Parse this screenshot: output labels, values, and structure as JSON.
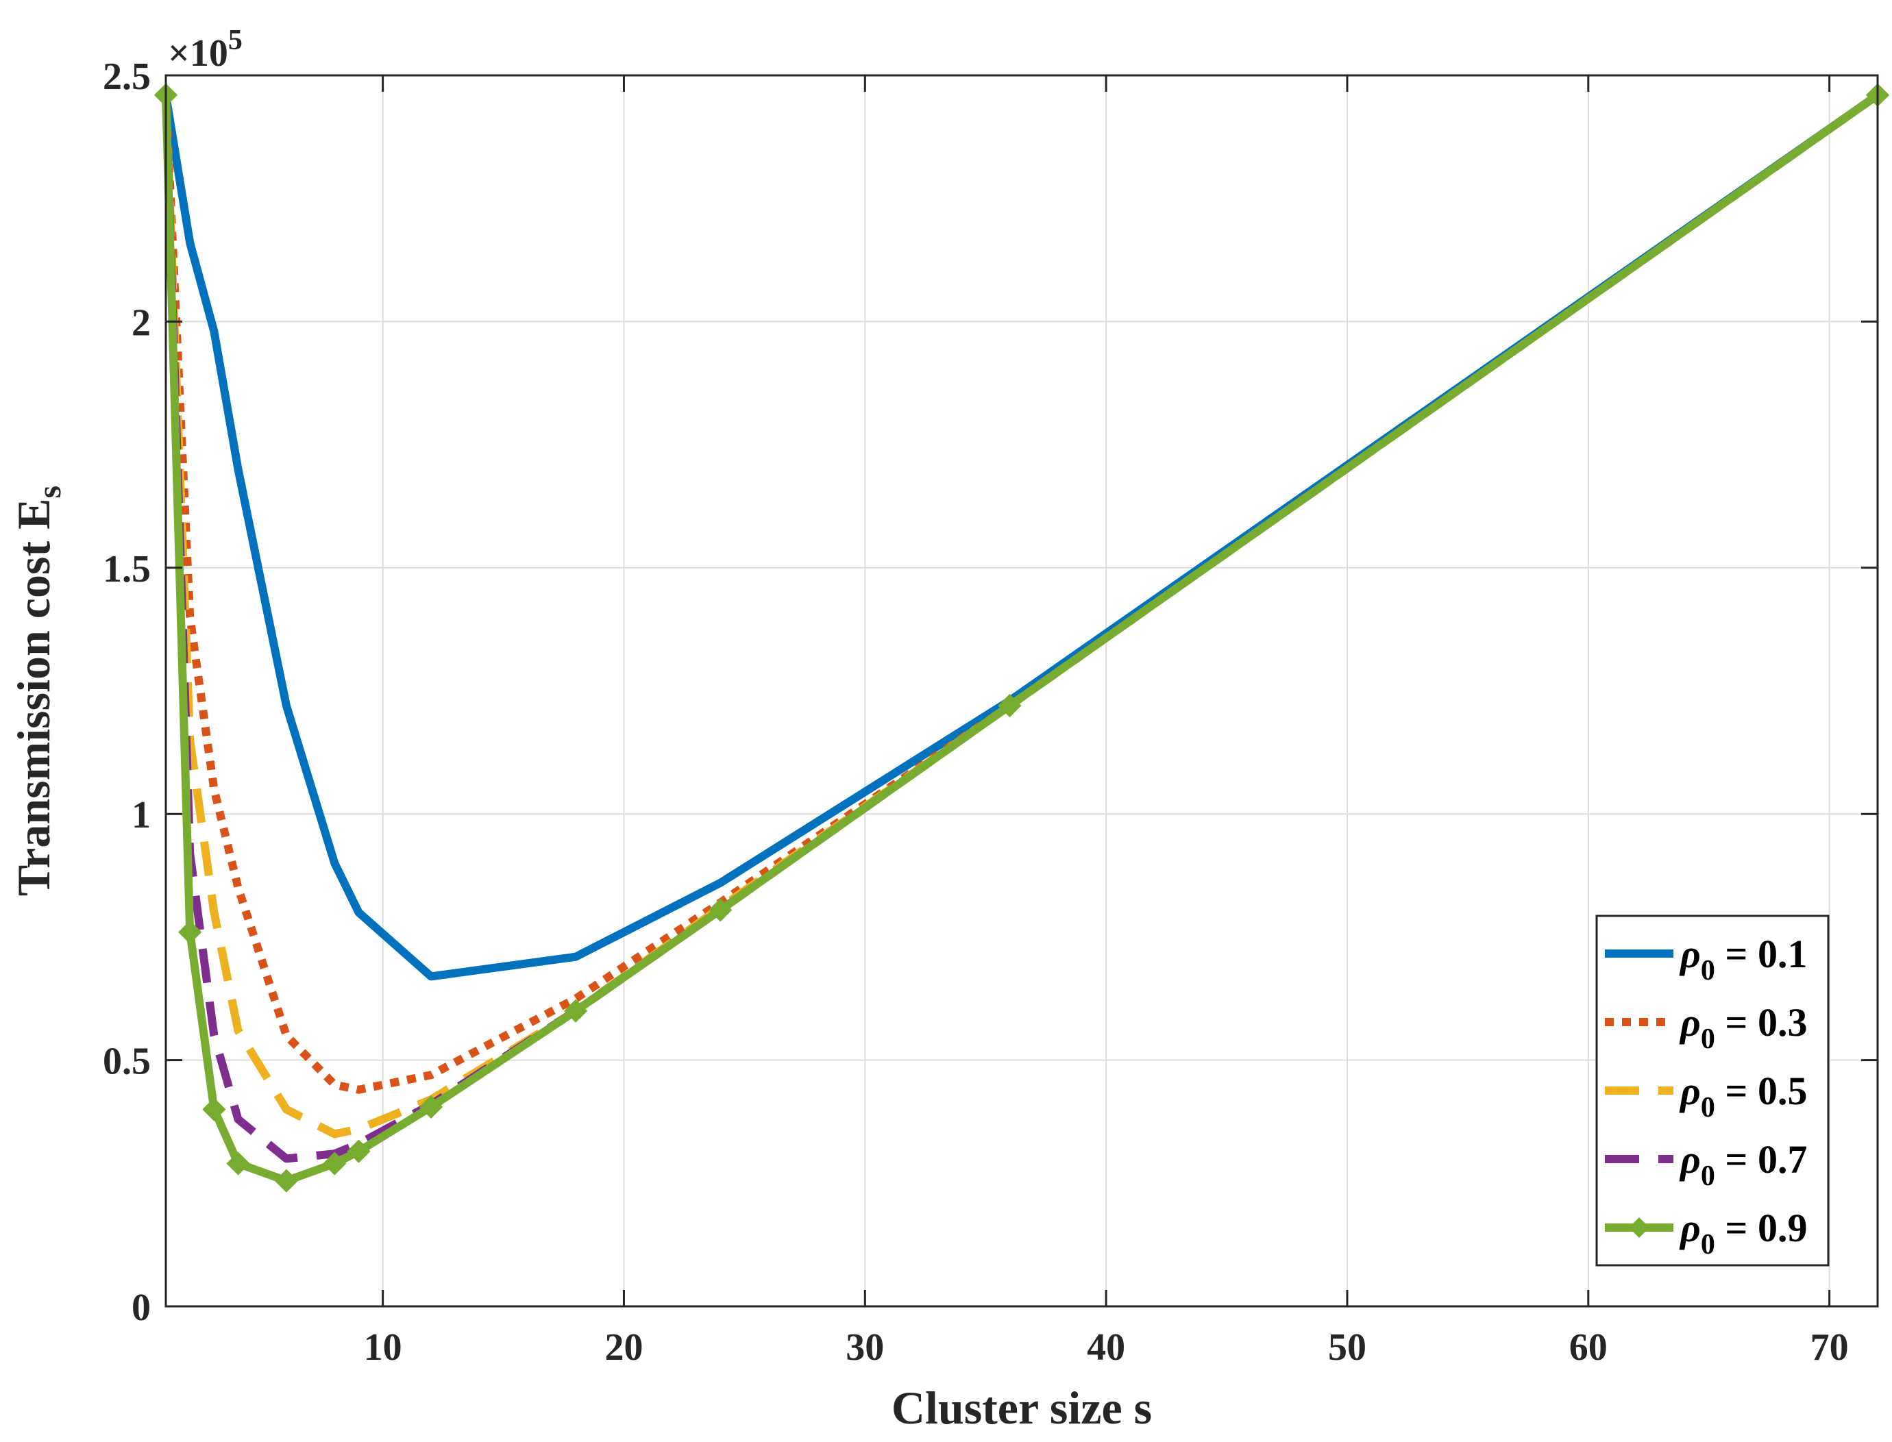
{
  "chart_data": {
    "type": "line",
    "xlabel": "Cluster size s",
    "ylabel": "Transmission cost E",
    "ylabel_subscript": "s",
    "y_exponent_base": "×10",
    "y_exponent_power": "5",
    "xlim": [
      1,
      72
    ],
    "ylim": [
      0,
      2.5
    ],
    "y_scale": 100000,
    "x_ticks": [
      10,
      20,
      30,
      40,
      50,
      60,
      70
    ],
    "y_ticks": [
      0,
      0.5,
      1,
      1.5,
      2,
      2.5
    ],
    "y_tick_labels": [
      "0",
      "0.5",
      "1",
      "1.5",
      "2",
      "2.5"
    ],
    "grid": true,
    "legend_position": "bottom-right",
    "series": [
      {
        "symbol": "ρ",
        "subscript": "0",
        "suffix": "= 0.1",
        "color": "#0072BD",
        "style": "solid",
        "marker": "none",
        "x": [
          1,
          2,
          3,
          4,
          6,
          8,
          9,
          12,
          18,
          24,
          36,
          72
        ],
        "y": [
          2.46,
          2.16,
          1.98,
          1.7,
          1.22,
          0.9,
          0.8,
          0.67,
          0.71,
          0.86,
          1.23,
          2.46
        ]
      },
      {
        "symbol": "ρ",
        "subscript": "0",
        "suffix": "= 0.3",
        "color": "#D95319",
        "style": "dotted",
        "marker": "none",
        "x": [
          1,
          2,
          3,
          4,
          6,
          8,
          9,
          12,
          18,
          24,
          36,
          72
        ],
        "y": [
          2.46,
          1.4,
          1.05,
          0.85,
          0.55,
          0.45,
          0.44,
          0.47,
          0.625,
          0.82,
          1.22,
          2.46
        ]
      },
      {
        "symbol": "ρ",
        "subscript": "0",
        "suffix": "= 0.5",
        "color": "#EDB120",
        "style": "dashed",
        "marker": "none",
        "x": [
          1,
          2,
          3,
          4,
          6,
          8,
          9,
          12,
          18,
          24,
          36,
          72
        ],
        "y": [
          2.46,
          1.15,
          0.8,
          0.56,
          0.4,
          0.35,
          0.36,
          0.42,
          0.6,
          0.81,
          1.22,
          2.46
        ]
      },
      {
        "symbol": "ρ",
        "subscript": "0",
        "suffix": "= 0.7",
        "color": "#7E2F8E",
        "style": "dashed",
        "marker": "none",
        "x": [
          1,
          2,
          3,
          4,
          6,
          8,
          9,
          12,
          18,
          24,
          36,
          72
        ],
        "y": [
          2.46,
          0.92,
          0.55,
          0.38,
          0.3,
          0.31,
          0.33,
          0.41,
          0.6,
          0.805,
          1.22,
          2.46
        ]
      },
      {
        "symbol": "ρ",
        "subscript": "0",
        "suffix": "= 0.9",
        "color": "#77AC30",
        "style": "solid",
        "marker": "diamond",
        "x": [
          1,
          2,
          3,
          4,
          6,
          8,
          9,
          12,
          18,
          24,
          36,
          72
        ],
        "y": [
          2.46,
          0.76,
          0.4,
          0.29,
          0.255,
          0.29,
          0.315,
          0.405,
          0.6,
          0.805,
          1.22,
          2.46
        ]
      }
    ]
  }
}
